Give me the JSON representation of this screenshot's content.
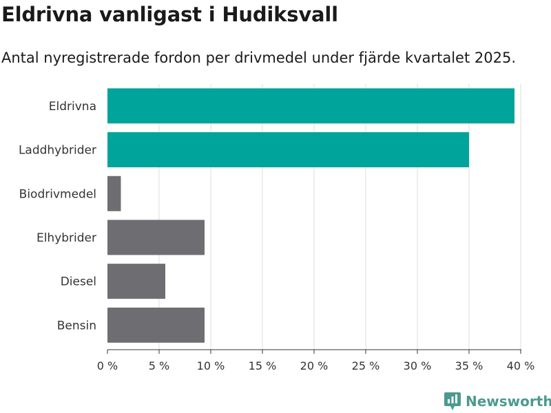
{
  "title": "Eldrivna vanligast i Hudiksvall",
  "subtitle": "Antal nyregistrerade fordon per drivmedel under fjärde kvartalet 2025.",
  "brand": {
    "name": "Newsworthy",
    "icon": "newsworthy-logo-icon",
    "color": "#4c9a8f"
  },
  "chart_data": {
    "type": "bar",
    "orientation": "horizontal",
    "categories": [
      "Eldrivna",
      "Laddhybrider",
      "Biodrivmedel",
      "Elhybrider",
      "Diesel",
      "Bensin"
    ],
    "values": [
      39.4,
      35.0,
      1.3,
      9.4,
      5.6,
      9.4
    ],
    "colors": [
      "#00a49a",
      "#00a49a",
      "#6e6d72",
      "#6e6d72",
      "#6e6d72",
      "#6e6d72"
    ],
    "xlim": [
      0,
      40
    ],
    "xticks": [
      0,
      5,
      10,
      15,
      20,
      25,
      30,
      35,
      40
    ],
    "tick_suffix": " %",
    "grid": true
  }
}
